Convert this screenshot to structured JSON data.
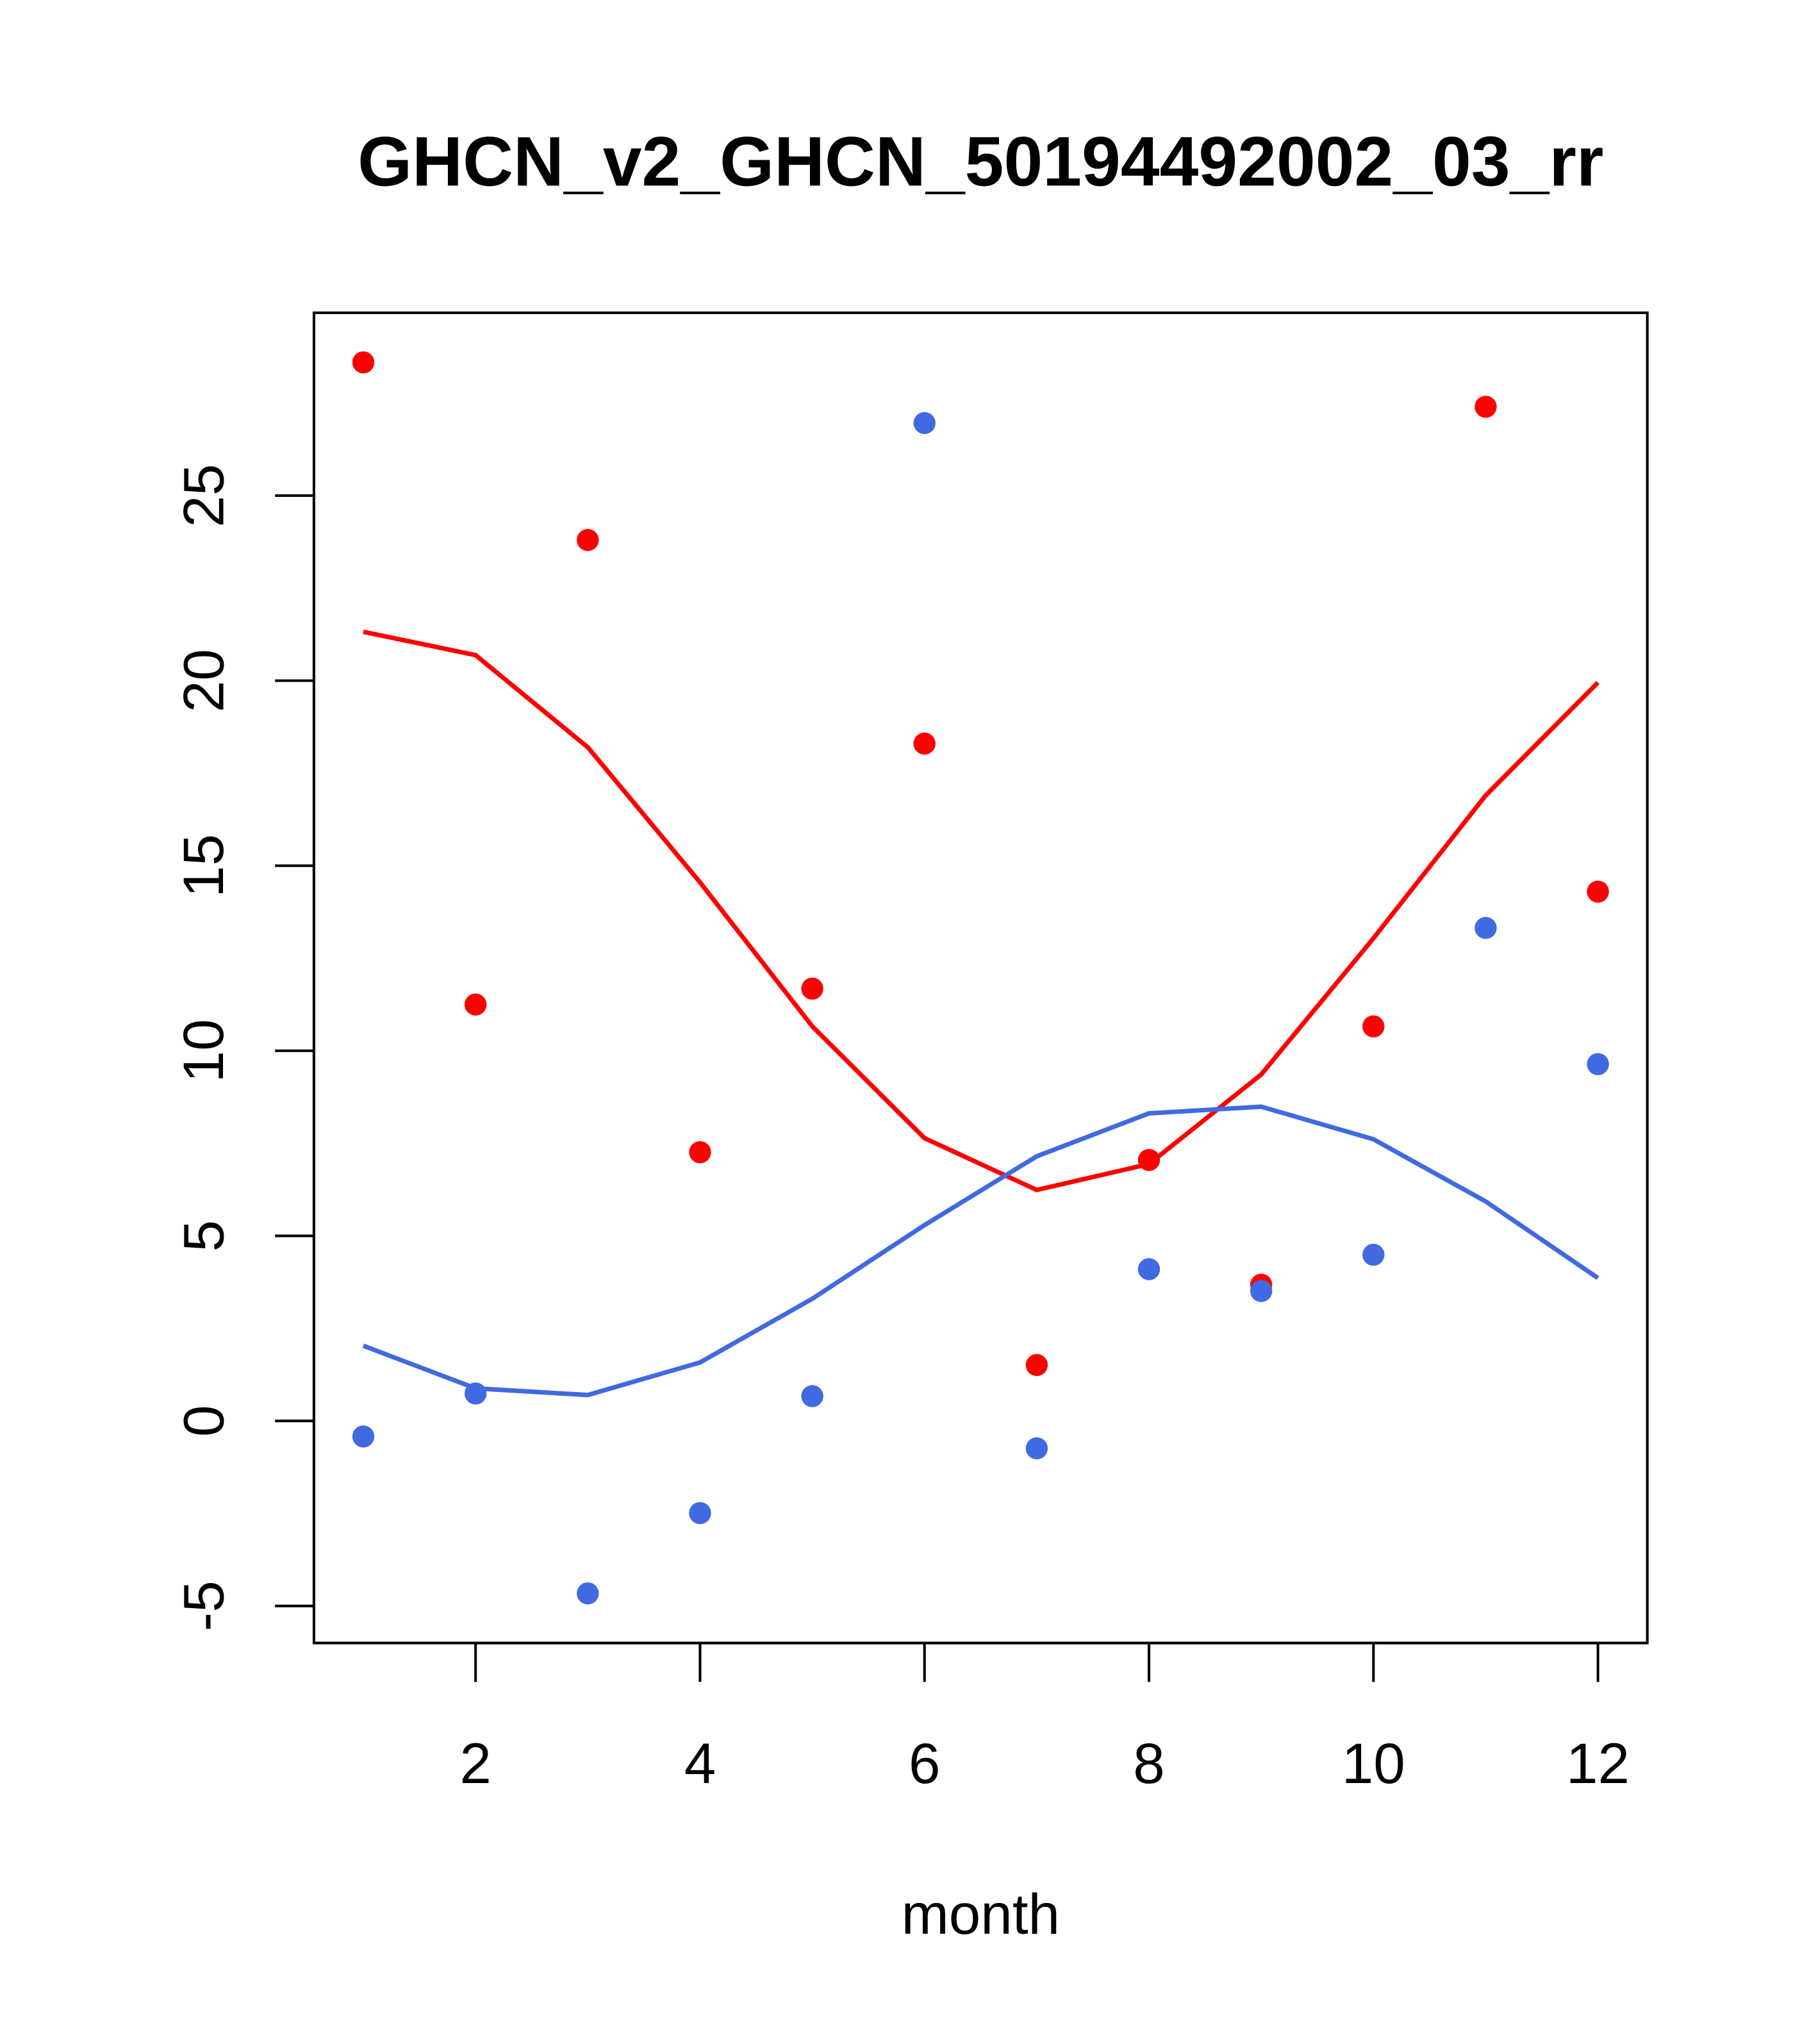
{
  "chart_data": {
    "type": "scatter",
    "title": "GHCN_v2_GHCN_50194492002_03_rr",
    "xlabel": "month",
    "ylabel": "",
    "xlim": [
      0.56,
      12.44
    ],
    "ylim": [
      -6.0,
      29.94
    ],
    "xticks": [
      2,
      4,
      6,
      8,
      10,
      12
    ],
    "yticks": [
      -5,
      0,
      5,
      10,
      15,
      20,
      25
    ],
    "grid": false,
    "colors": {
      "red": "#ff0000",
      "blue": "#4169e1"
    },
    "x": [
      1,
      2,
      3,
      4,
      5,
      6,
      7,
      8,
      9,
      10,
      11,
      12
    ],
    "series": [
      {
        "name": "red-points",
        "kind": "points",
        "color": "#ff0000",
        "values": [
          28.6,
          11.25,
          23.8,
          7.26,
          11.68,
          18.3,
          1.51,
          7.05,
          3.68,
          10.66,
          27.4,
          14.3
        ]
      },
      {
        "name": "blue-points",
        "kind": "points",
        "color": "#4169e1",
        "values": [
          -0.42,
          0.74,
          -4.66,
          -2.49,
          0.67,
          26.96,
          -0.74,
          4.1,
          3.51,
          4.49,
          13.32,
          9.64
        ]
      },
      {
        "name": "red-line",
        "kind": "line",
        "color": "#ff0000",
        "values": [
          21.32,
          20.69,
          18.2,
          14.55,
          10.66,
          7.64,
          6.24,
          6.94,
          9.36,
          13.04,
          16.9,
          19.95
        ]
      },
      {
        "name": "blue-line",
        "kind": "line",
        "color": "#4169e1",
        "values": [
          2.03,
          0.88,
          0.7,
          1.58,
          3.3,
          5.29,
          7.15,
          8.31,
          8.49,
          7.61,
          5.93,
          3.86
        ]
      }
    ]
  }
}
